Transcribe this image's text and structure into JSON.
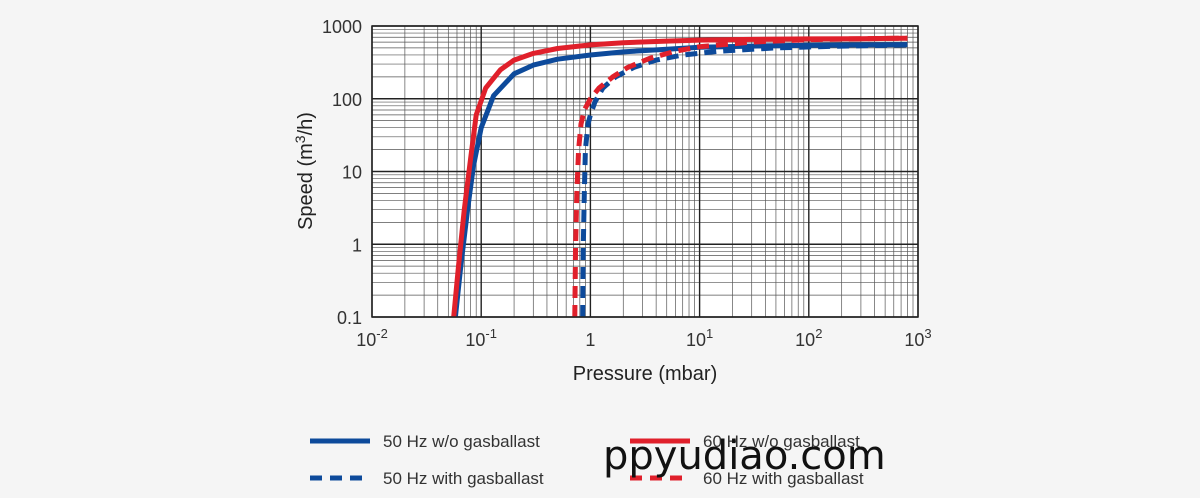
{
  "chart_data": {
    "type": "line",
    "title": "",
    "xlabel": "Pressure (mbar)",
    "ylabel": "Speed (m3/h)",
    "ylabel_parts": {
      "pre": "Speed (m",
      "sup": "3",
      "post": "/h)"
    },
    "xscale": "log",
    "yscale": "log",
    "xlim": [
      0.01,
      1000
    ],
    "ylim": [
      0.1,
      1000
    ],
    "grid": true,
    "x_ticks": [
      {
        "base": "10",
        "exp": "-2"
      },
      {
        "base": "10",
        "exp": "-1"
      },
      {
        "base": "1",
        "exp": ""
      },
      {
        "base": "10",
        "exp": "1"
      },
      {
        "base": "10",
        "exp": "2"
      },
      {
        "base": "10",
        "exp": "3"
      }
    ],
    "y_ticks": [
      "0.1",
      "1",
      "10",
      "100",
      "1000"
    ],
    "legend_position": "bottom",
    "series": [
      {
        "name": "50 Hz w/o gasballast",
        "color": "#0d4a9b",
        "dash": "solid",
        "x": [
          0.058,
          0.065,
          0.075,
          0.085,
          0.1,
          0.13,
          0.2,
          0.3,
          0.5,
          1,
          2,
          5,
          10,
          30,
          100,
          300,
          800
        ],
        "y": [
          0.1,
          0.5,
          3,
          12,
          40,
          110,
          220,
          290,
          350,
          400,
          440,
          480,
          510,
          530,
          545,
          550,
          555
        ]
      },
      {
        "name": "50 Hz with gasballast",
        "color": "#0d4a9b",
        "dash": "dashed",
        "x": [
          0.85,
          0.86,
          0.88,
          0.9,
          0.95,
          1.0,
          1.1,
          1.3,
          1.7,
          2.5,
          4,
          7,
          15,
          50,
          200,
          800
        ],
        "y": [
          0.1,
          0.8,
          5,
          20,
          45,
          60,
          90,
          140,
          200,
          270,
          340,
          400,
          450,
          500,
          530,
          550
        ]
      },
      {
        "name": "60 Hz w/o gasballast",
        "color": "#e0202b",
        "dash": "solid",
        "x": [
          0.056,
          0.062,
          0.07,
          0.08,
          0.09,
          0.11,
          0.15,
          0.2,
          0.3,
          0.5,
          1,
          2,
          5,
          10,
          30,
          100,
          300,
          800
        ],
        "y": [
          0.1,
          0.5,
          3,
          15,
          60,
          140,
          250,
          340,
          420,
          490,
          550,
          590,
          620,
          640,
          655,
          665,
          670,
          680
        ]
      },
      {
        "name": "60 Hz with gasballast",
        "color": "#e0202b",
        "dash": "dashed",
        "x": [
          0.72,
          0.73,
          0.75,
          0.78,
          0.82,
          0.88,
          1.0,
          1.2,
          1.6,
          2.2,
          3.5,
          6,
          10,
          30,
          100,
          300,
          800
        ],
        "y": [
          0.1,
          0.8,
          5,
          20,
          45,
          70,
          100,
          140,
          200,
          270,
          360,
          450,
          520,
          600,
          650,
          670,
          680
        ]
      }
    ]
  },
  "watermark": "ppyudiao.com"
}
